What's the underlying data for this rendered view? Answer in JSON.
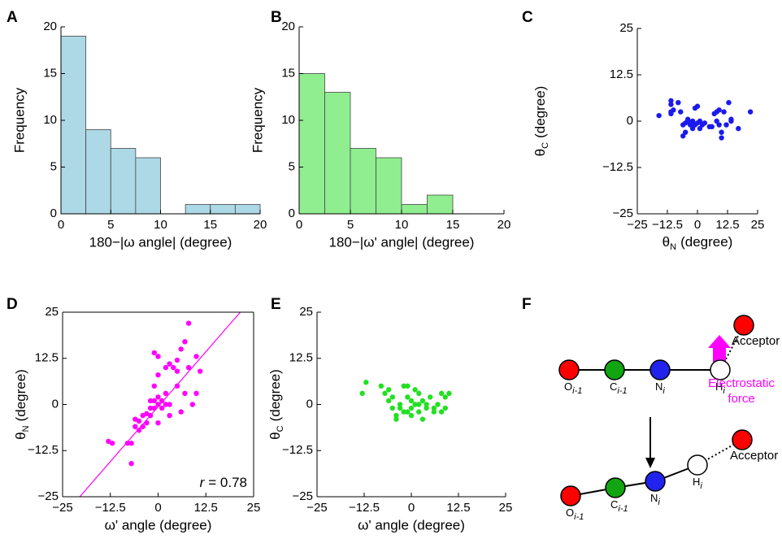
{
  "chart_data": [
    {
      "type": "histogram",
      "panel": "A",
      "bins": [
        0,
        2.5,
        5,
        7.5,
        10,
        12.5,
        15,
        17.5,
        20
      ],
      "values": [
        19,
        9,
        7,
        6,
        0,
        1,
        1,
        1
      ],
      "color": "#add8e6",
      "xlim": [
        0,
        20
      ],
      "xticks": [
        0,
        5,
        10,
        15,
        20
      ],
      "ylim": [
        0,
        20
      ],
      "yticks": [
        0,
        5,
        10,
        15,
        20
      ],
      "xlabel": "180−|ω angle| (degree)",
      "ylabel": "Frequency"
    },
    {
      "type": "histogram",
      "panel": "B",
      "bins": [
        0,
        2.5,
        5,
        7.5,
        10,
        12.5,
        15,
        17.5,
        20
      ],
      "values": [
        15,
        13,
        7,
        6,
        1,
        2,
        0,
        0
      ],
      "color": "#90ee90",
      "xlim": [
        0,
        20
      ],
      "xticks": [
        0,
        5,
        10,
        15,
        20
      ],
      "ylim": [
        0,
        20
      ],
      "yticks": [
        0,
        5,
        10,
        15,
        20
      ],
      "xlabel": "180−|ω' angle| (degree)",
      "ylabel": "Frequency"
    },
    {
      "type": "scatter",
      "panel": "C",
      "color": "#1a1aee",
      "x": [
        -16,
        -11,
        -11,
        -11,
        -10,
        -11,
        -8,
        -7,
        -6,
        -5,
        -6,
        -5,
        -4,
        -3,
        -2,
        -1,
        -1,
        -2,
        0,
        0,
        1,
        1,
        2,
        -4,
        3,
        5,
        6,
        7,
        8,
        8,
        9,
        9,
        10,
        10,
        11,
        12,
        13,
        14,
        14,
        17,
        22
      ],
      "values": [
        1.5,
        5.5,
        4.5,
        2.5,
        3,
        2,
        5,
        2.5,
        -1,
        -0.5,
        -4,
        -3,
        0,
        -1,
        0,
        3.5,
        -1,
        -2,
        -0.5,
        4,
        0,
        -2,
        -1,
        0.5,
        -0.5,
        -1.5,
        -1.5,
        2,
        2.5,
        0,
        -1,
        3,
        -3,
        -4.5,
        2.5,
        -1,
        5,
        0,
        0.5,
        -2,
        2.5
      ],
      "xlim": [
        -25,
        25
      ],
      "xticks": [
        {
          "value": -25,
          "label": "−25"
        },
        {
          "value": -12.5,
          "label": "−12.5"
        },
        0,
        12.5,
        25
      ],
      "ylim": [
        -25,
        25
      ],
      "yticks": [
        {
          "value": -25,
          "label": "−25"
        },
        {
          "value": -12.5,
          "label": "−12.5"
        },
        0,
        12.5,
        25
      ],
      "xlabel": {
        "symbol": "θ",
        "sub": "N",
        "unit": "(degree)"
      },
      "ylabel": {
        "symbol": "θ",
        "sub": "C",
        "unit": "(degree)"
      }
    },
    {
      "type": "scatter",
      "panel": "D",
      "color": "#ff00ff",
      "box": true,
      "x": [
        -13,
        -12,
        -8,
        -7,
        -7,
        -6,
        -6,
        -5,
        -5,
        -4,
        -4,
        -3,
        -3,
        -2,
        -2,
        -2,
        -1,
        -1,
        -1,
        0,
        0,
        0,
        -1,
        0,
        0,
        1,
        1,
        2,
        2,
        2,
        3,
        3,
        3,
        4,
        5,
        5,
        5,
        6,
        6,
        7,
        7,
        8,
        8,
        9,
        10,
        10,
        11
      ],
      "values": [
        -10,
        -10.5,
        -10.5,
        -10.5,
        -16,
        -4,
        -6,
        -4.5,
        -7,
        -3,
        -6,
        -2.5,
        -5,
        -1,
        1,
        -3,
        5,
        -1,
        1,
        0,
        2,
        -5,
        14,
        13,
        8,
        1,
        -1,
        0,
        3,
        10,
        0,
        11,
        -3,
        10,
        5,
        9,
        12,
        -2,
        15,
        17,
        3,
        10,
        22,
        0,
        3,
        13,
        9
      ],
      "fit": {
        "slope": 1.19,
        "intercept": -0.6
      },
      "annotation": {
        "symbol": "r",
        "text": "= 0.78"
      },
      "xlim": [
        -25,
        25
      ],
      "xticks": [
        {
          "value": -25,
          "label": "−25"
        },
        {
          "value": -12.5,
          "label": "−12.5"
        },
        0,
        12.5,
        25
      ],
      "ylim": [
        -25,
        25
      ],
      "yticks": [
        {
          "value": -25,
          "label": "−25"
        },
        {
          "value": -12.5,
          "label": "−12.5"
        },
        0,
        12.5,
        25
      ],
      "xlabel": "ω' angle (degree)",
      "ylabel": {
        "symbol": "θ",
        "sub": "N",
        "unit": "(degree)"
      }
    },
    {
      "type": "scatter",
      "panel": "E",
      "color": "#22e022",
      "x": [
        -13,
        -12,
        -8,
        -7,
        -6,
        -5,
        -5,
        -4,
        -4,
        -3,
        -3,
        -2,
        -1,
        -1,
        -1,
        0,
        0,
        0,
        1,
        1,
        2,
        2,
        2,
        3,
        3,
        4,
        4,
        5,
        6,
        6,
        7,
        8,
        8,
        9,
        9,
        10,
        -2,
        -6
      ],
      "values": [
        3,
        6,
        5,
        3,
        1,
        2,
        -1,
        -4,
        -3,
        0,
        -1,
        5,
        5,
        2,
        -2,
        1,
        -1,
        -3,
        0,
        4,
        -2,
        0,
        3,
        -4,
        1,
        0,
        -1,
        2,
        -2,
        -1,
        0,
        3,
        -2,
        -1,
        2,
        3,
        -2,
        4
      ],
      "xlim": [
        -25,
        25
      ],
      "xticks": [
        {
          "value": -25,
          "label": "−25"
        },
        {
          "value": -12.5,
          "label": "−12.5"
        },
        0,
        12.5,
        25
      ],
      "ylim": [
        -25,
        25
      ],
      "yticks": [
        {
          "value": -25,
          "label": "−25"
        },
        {
          "value": -12.5,
          "label": "−12.5"
        },
        0,
        12.5,
        25
      ],
      "xlabel": "ω' angle (degree)",
      "ylabel": {
        "symbol": "θ",
        "sub": "C",
        "unit": "(degree)"
      }
    }
  ],
  "diagram": {
    "panel": "F",
    "atoms": [
      {
        "symbol": "O",
        "sub": "i-1"
      },
      {
        "symbol": "C",
        "sub": "i-1"
      },
      {
        "symbol": "N",
        "sub": "i"
      },
      {
        "symbol": "H",
        "sub": "i"
      }
    ],
    "acceptor": "Acceptor",
    "force_label": [
      "Electrostatic",
      "force"
    ]
  }
}
